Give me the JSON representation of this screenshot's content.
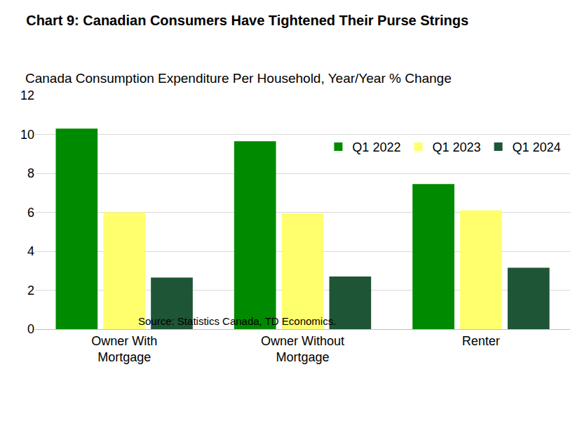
{
  "chart_data": {
    "type": "bar",
    "title": "Chart 9: Canadian Consumers Have Tightened Their Purse Strings",
    "subtitle": "Canada Consumption Expenditure Per Household, Year/Year % Change",
    "source": "Source: Statistics Canada, TD Economics.",
    "categories": [
      "Owner With Mortgage",
      "Owner Without Mortgage",
      "Renter"
    ],
    "series": [
      {
        "name": "Q1 2022",
        "color": "#008a00",
        "values": [
          10.3,
          9.65,
          7.45
        ]
      },
      {
        "name": "Q1 2023",
        "color": "#ffff6e",
        "values": [
          6.0,
          5.95,
          6.1
        ]
      },
      {
        "name": "Q1 2024",
        "color": "#1e5536",
        "values": [
          2.65,
          2.7,
          3.15
        ]
      }
    ],
    "ylim": [
      0,
      12
    ],
    "yticks": [
      0,
      2,
      4,
      6,
      8,
      10,
      12
    ],
    "grid": true,
    "legend": "upper right"
  }
}
